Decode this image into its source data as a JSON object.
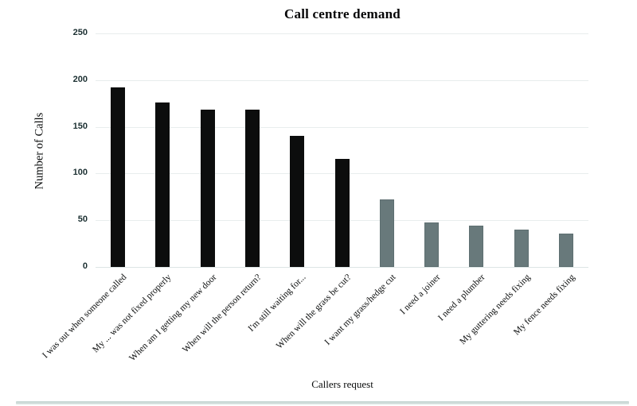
{
  "chart_data": {
    "type": "bar",
    "title": "Call centre demand",
    "xlabel": "Callers request",
    "ylabel": "Number of Calls",
    "categories": [
      "I was out when someone called",
      "My ... was not fixed properly",
      "When am I getting my new door",
      "When will the person return?",
      "I'm still waiting for...",
      "When will the grass be cut?",
      "I want my grass/hedge cut",
      "I need a joiner",
      "I need a plumber",
      "My guttering needs fixing",
      "My fence needs fixing"
    ],
    "values": [
      192,
      176,
      168,
      168,
      140,
      116,
      72,
      48,
      44,
      40,
      36
    ],
    "bar_colors": [
      "#0c0d0d",
      "#0c0d0d",
      "#0c0d0d",
      "#0c0d0d",
      "#0c0d0d",
      "#0c0d0d",
      "#68797b",
      "#68797b",
      "#68797b",
      "#68797b",
      "#68797b"
    ],
    "ylim": [
      0,
      250
    ],
    "yticks": [
      0,
      50,
      100,
      150,
      200,
      250
    ],
    "grid": "horizontal",
    "legend": "none",
    "colors": {
      "complaint_bar": "#0c0d0d",
      "request_bar": "#68797b",
      "request_bar_border": "#5e6f71",
      "gridline": "#e8eded",
      "baseline": "#dde5e5",
      "tick_text": "#1b2f31",
      "bottom_rule": "#c2d2cf"
    }
  }
}
